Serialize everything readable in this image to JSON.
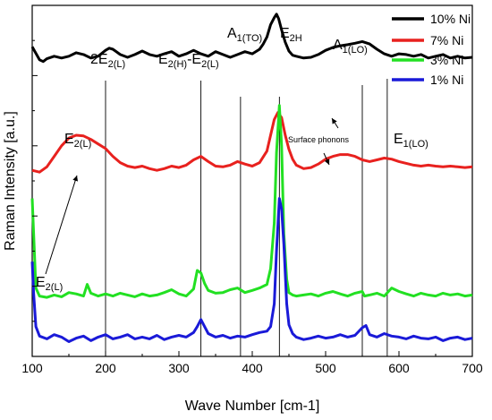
{
  "chart_data": {
    "type": "line",
    "xlabel": "Wave Number [cm-1]",
    "ylabel": "Raman Intensity [a.u.]",
    "xlim": [
      100,
      700
    ],
    "xticks": [
      100,
      200,
      300,
      400,
      500,
      600,
      700
    ],
    "ylim": [
      0,
      10
    ],
    "y_ticks_labelled": false,
    "grid": false,
    "legend_position": "top-right",
    "series": [
      {
        "name": "10% Ni",
        "color": "#000000",
        "x": [
          100,
          110,
          115,
          120,
          130,
          140,
          150,
          160,
          170,
          180,
          190,
          200,
          205,
          210,
          220,
          230,
          240,
          250,
          260,
          270,
          280,
          290,
          300,
          310,
          320,
          330,
          340,
          350,
          360,
          370,
          380,
          390,
          400,
          410,
          415,
          420,
          425,
          430,
          433,
          436,
          440,
          445,
          450,
          455,
          460,
          470,
          480,
          490,
          500,
          510,
          520,
          530,
          540,
          550,
          560,
          570,
          580,
          590,
          600,
          610,
          620,
          630,
          640,
          650,
          660,
          670,
          680,
          690,
          700
        ],
        "y": [
          8.82,
          8.45,
          8.4,
          8.48,
          8.55,
          8.5,
          8.55,
          8.65,
          8.6,
          8.5,
          8.55,
          8.72,
          8.78,
          8.75,
          8.6,
          8.52,
          8.6,
          8.7,
          8.6,
          8.55,
          8.62,
          8.68,
          8.55,
          8.62,
          8.72,
          8.62,
          8.55,
          8.68,
          8.6,
          8.52,
          8.6,
          8.68,
          8.62,
          8.75,
          8.9,
          9.1,
          9.45,
          9.65,
          9.75,
          9.62,
          9.3,
          8.95,
          8.7,
          8.58,
          8.55,
          8.5,
          8.52,
          8.6,
          8.72,
          8.8,
          8.85,
          8.88,
          8.92,
          8.97,
          8.9,
          8.75,
          8.62,
          8.55,
          8.62,
          8.6,
          8.55,
          8.6,
          8.5,
          8.55,
          8.6,
          8.5,
          8.55,
          8.5,
          8.52
        ]
      },
      {
        "name": "7% Ni",
        "color": "#e8211e",
        "x": [
          100,
          110,
          120,
          130,
          140,
          150,
          160,
          170,
          180,
          190,
          200,
          210,
          220,
          230,
          240,
          250,
          260,
          270,
          280,
          290,
          300,
          310,
          320,
          330,
          340,
          350,
          360,
          370,
          380,
          390,
          400,
          410,
          420,
          425,
          430,
          435,
          440,
          445,
          450,
          455,
          460,
          470,
          480,
          490,
          500,
          510,
          520,
          530,
          540,
          550,
          560,
          570,
          580,
          590,
          600,
          610,
          620,
          630,
          640,
          650,
          660,
          670,
          680,
          690,
          700
        ],
        "y": [
          5.3,
          5.25,
          5.4,
          5.7,
          6.0,
          6.22,
          6.3,
          6.28,
          6.18,
          6.05,
          5.92,
          5.7,
          5.52,
          5.42,
          5.38,
          5.42,
          5.35,
          5.3,
          5.35,
          5.42,
          5.38,
          5.45,
          5.6,
          5.7,
          5.55,
          5.42,
          5.4,
          5.45,
          5.55,
          5.48,
          5.42,
          5.52,
          5.85,
          6.3,
          6.75,
          6.95,
          6.8,
          6.3,
          5.9,
          5.62,
          5.45,
          5.35,
          5.38,
          5.48,
          5.62,
          5.7,
          5.75,
          5.75,
          5.7,
          5.6,
          5.55,
          5.6,
          5.65,
          5.62,
          5.55,
          5.5,
          5.45,
          5.42,
          5.45,
          5.42,
          5.4,
          5.42,
          5.4,
          5.38,
          5.4
        ]
      },
      {
        "name": "3% Ni",
        "color": "#22e022",
        "x": [
          100,
          102,
          105,
          110,
          120,
          130,
          140,
          150,
          160,
          170,
          175,
          180,
          190,
          200,
          210,
          220,
          230,
          240,
          250,
          260,
          270,
          280,
          290,
          300,
          310,
          320,
          325,
          330,
          335,
          340,
          350,
          360,
          370,
          380,
          390,
          400,
          410,
          420,
          425,
          430,
          433,
          437,
          440,
          443,
          447,
          450,
          455,
          460,
          470,
          480,
          490,
          500,
          510,
          520,
          530,
          540,
          550,
          553,
          560,
          570,
          580,
          590,
          600,
          610,
          620,
          630,
          640,
          650,
          660,
          670,
          680,
          690,
          700
        ],
        "y": [
          4.5,
          3.5,
          1.95,
          1.72,
          1.68,
          1.75,
          1.7,
          1.82,
          1.78,
          1.72,
          2.05,
          1.8,
          1.72,
          1.78,
          1.72,
          1.8,
          1.75,
          1.7,
          1.78,
          1.72,
          1.75,
          1.82,
          1.9,
          1.78,
          1.72,
          1.92,
          2.45,
          2.38,
          2.08,
          1.88,
          1.8,
          1.82,
          1.9,
          1.95,
          1.82,
          1.88,
          1.95,
          2.05,
          2.5,
          3.8,
          5.8,
          7.15,
          6.0,
          3.5,
          2.2,
          1.82,
          1.75,
          1.72,
          1.75,
          1.78,
          1.72,
          1.8,
          1.85,
          1.78,
          1.72,
          1.8,
          1.85,
          1.72,
          1.75,
          1.8,
          1.72,
          1.95,
          1.85,
          1.78,
          1.72,
          1.8,
          1.75,
          1.72,
          1.8,
          1.75,
          1.78,
          1.72,
          1.75
        ]
      },
      {
        "name": "1% Ni",
        "color": "#1a1ad8",
        "x": [
          100,
          102,
          105,
          110,
          120,
          130,
          140,
          150,
          160,
          170,
          180,
          190,
          200,
          210,
          220,
          230,
          240,
          250,
          260,
          270,
          280,
          290,
          300,
          310,
          320,
          325,
          330,
          335,
          340,
          350,
          360,
          370,
          380,
          390,
          400,
          410,
          420,
          425,
          430,
          433,
          437,
          440,
          443,
          447,
          450,
          455,
          460,
          470,
          480,
          490,
          500,
          510,
          520,
          530,
          540,
          550,
          555,
          560,
          570,
          580,
          590,
          600,
          610,
          620,
          630,
          640,
          650,
          660,
          670,
          680,
          690,
          700
        ],
        "y": [
          2.7,
          1.8,
          0.85,
          0.58,
          0.5,
          0.62,
          0.55,
          0.42,
          0.52,
          0.58,
          0.45,
          0.55,
          0.62,
          0.5,
          0.55,
          0.62,
          0.5,
          0.55,
          0.5,
          0.6,
          0.48,
          0.55,
          0.6,
          0.55,
          0.68,
          0.85,
          1.05,
          0.85,
          0.65,
          0.55,
          0.6,
          0.52,
          0.58,
          0.55,
          0.62,
          0.68,
          0.72,
          0.85,
          1.5,
          3.0,
          4.5,
          4.2,
          3.2,
          1.5,
          0.9,
          0.65,
          0.55,
          0.48,
          0.52,
          0.58,
          0.52,
          0.55,
          0.62,
          0.55,
          0.6,
          0.82,
          0.88,
          0.62,
          0.55,
          0.65,
          0.58,
          0.55,
          0.5,
          0.58,
          0.52,
          0.5,
          0.55,
          0.45,
          0.52,
          0.55,
          0.48,
          0.52
        ]
      }
    ],
    "reference_lines": [
      {
        "x": 200,
        "label": "2E2(L)"
      },
      {
        "x": 330,
        "label": "E2(H)-E2(L)"
      },
      {
        "x": 384,
        "label": "A1(TO)"
      },
      {
        "x": 437,
        "label": "E2H"
      },
      {
        "x": 550,
        "label": "A1(LO)"
      },
      {
        "x": 584,
        "label": "E1(LO)"
      }
    ],
    "annotations": [
      {
        "label": "E2(L)",
        "x": 130,
        "y": 7.1
      },
      {
        "label": "E2(L)",
        "x": 104,
        "y": 2.2
      },
      {
        "label": "Surface phonons",
        "x": 500,
        "y": 7.55
      }
    ]
  }
}
